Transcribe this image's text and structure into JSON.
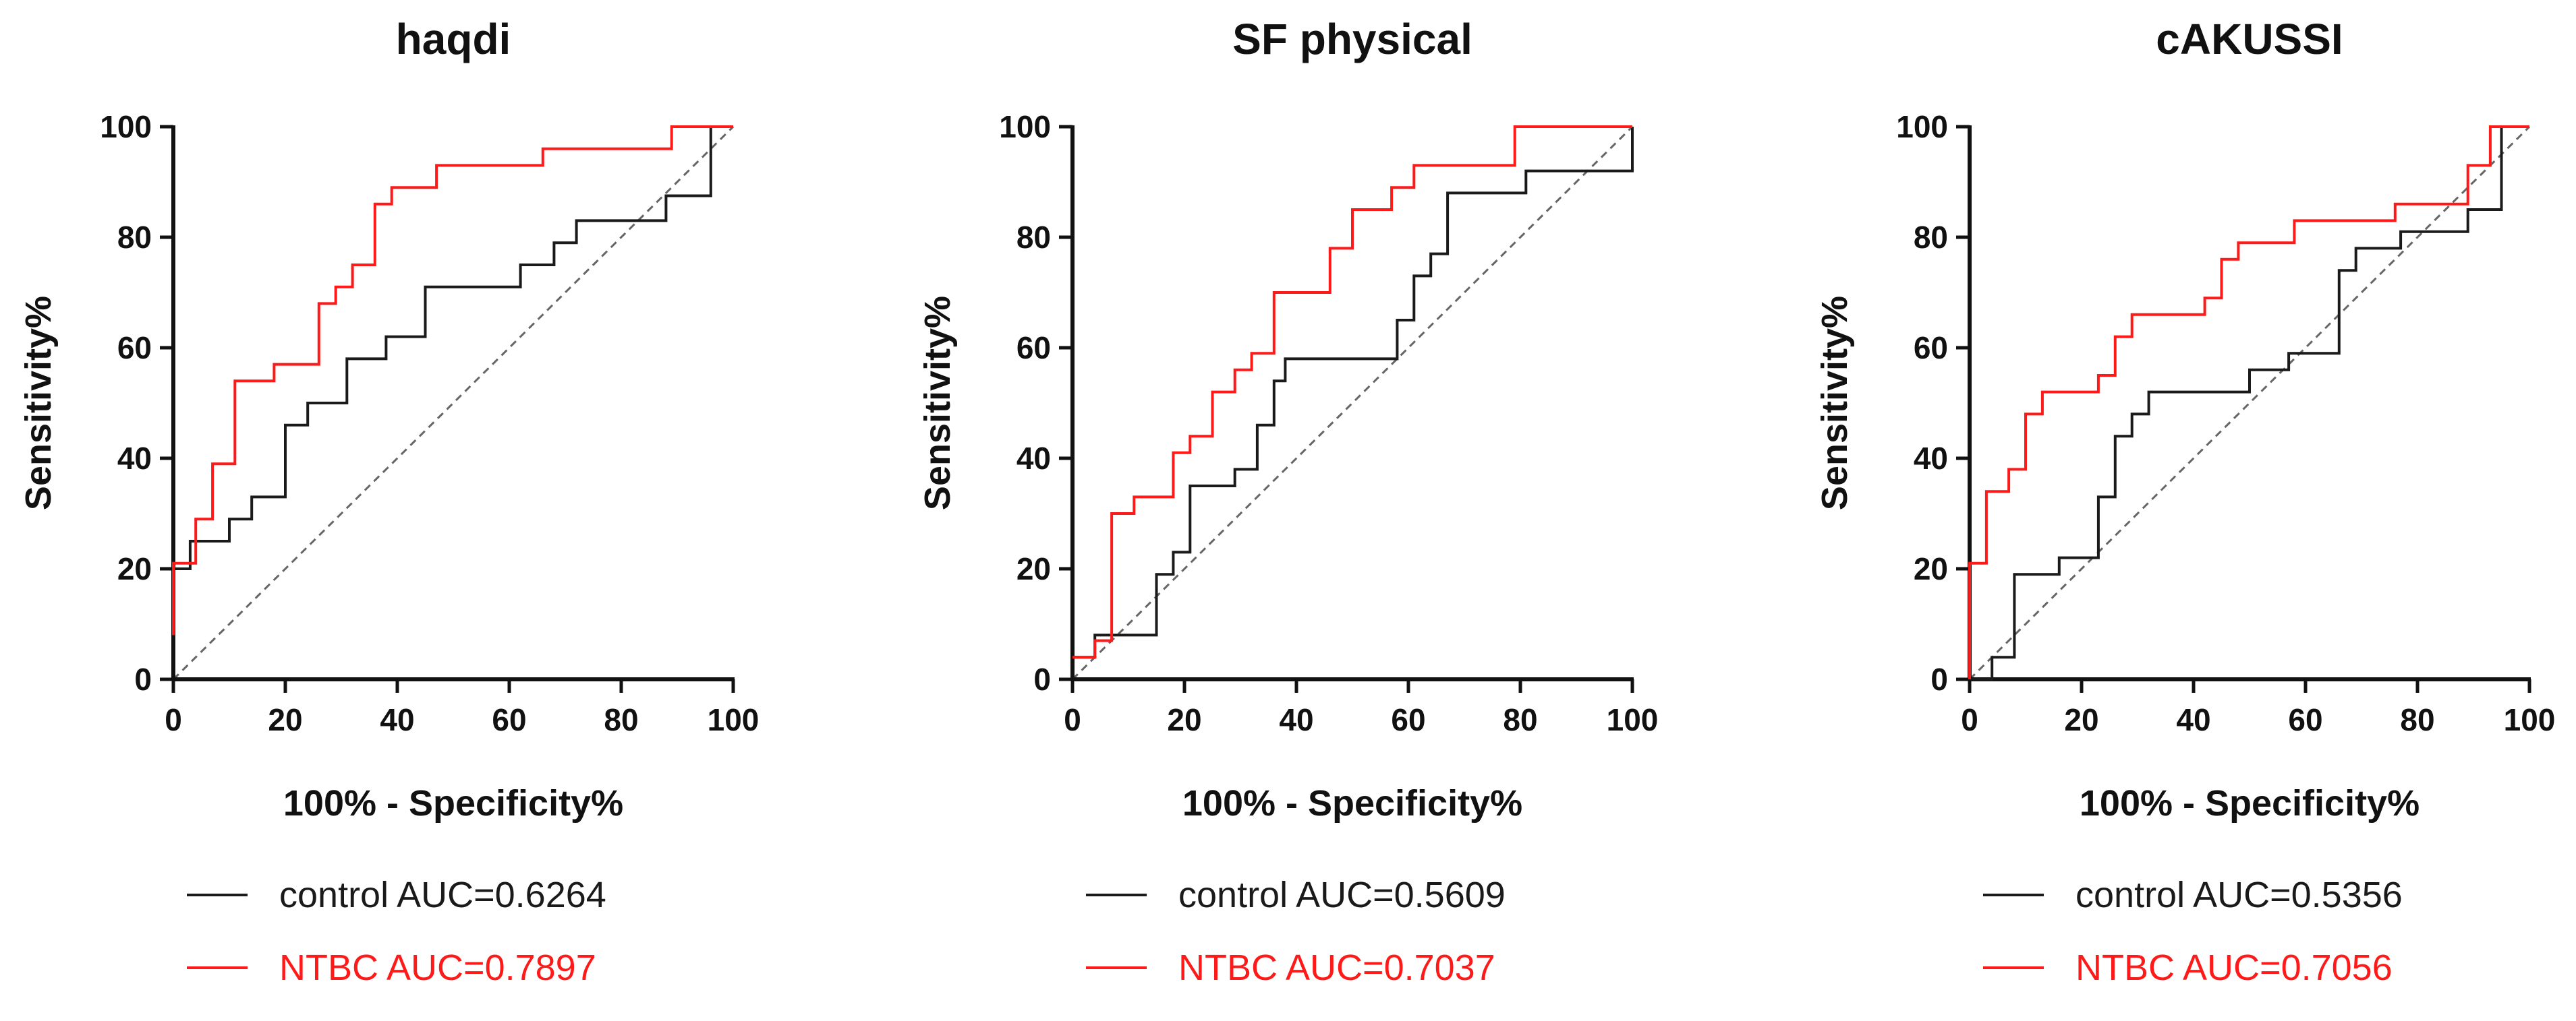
{
  "chart_data": [
    {
      "type": "line",
      "title": "haqdi",
      "xlabel": "100% - Specificity%",
      "ylabel": "Sensitivity%",
      "xlim": [
        0,
        100
      ],
      "ylim": [
        0,
        100
      ],
      "xticks": [
        "0",
        "20",
        "40",
        "60",
        "80",
        "100"
      ],
      "yticks": [
        "0",
        "20",
        "40",
        "60",
        "80",
        "100"
      ],
      "series": [
        {
          "name": "control AUC=0.6264",
          "color": "#1a1a1a",
          "x": [
            0,
            0,
            3,
            3,
            10,
            10,
            14,
            14,
            20,
            20,
            22,
            22,
            24,
            24,
            31,
            31,
            38,
            38,
            45,
            45,
            62,
            62,
            68,
            68,
            72,
            72,
            88,
            88,
            96,
            96,
            100
          ],
          "y": [
            8,
            20,
            20,
            25,
            25,
            29,
            29,
            33,
            33,
            46,
            46,
            46,
            46,
            50,
            50,
            58,
            58,
            62,
            62,
            71,
            71,
            75,
            75,
            79,
            79,
            83,
            83,
            87.5,
            87.5,
            100,
            100
          ]
        },
        {
          "name": "NTBC AUC=0.7897",
          "color": "#ff1a1a",
          "x": [
            0,
            0,
            4,
            4,
            7,
            7,
            11,
            11,
            18,
            18,
            26,
            26,
            29,
            29,
            32,
            32,
            36,
            36,
            39,
            39,
            47,
            47,
            66,
            66,
            89,
            89,
            100
          ],
          "y": [
            8,
            21,
            21,
            29,
            29,
            39,
            39,
            54,
            54,
            57,
            57,
            68,
            68,
            71,
            71,
            75,
            75,
            86,
            86,
            89,
            89,
            93,
            93,
            96,
            96,
            100,
            100
          ]
        }
      ]
    },
    {
      "type": "line",
      "title": "SF physical",
      "xlabel": "100% - Specificity%",
      "ylabel": "Sensitivity%",
      "xlim": [
        0,
        100
      ],
      "ylim": [
        0,
        100
      ],
      "xticks": [
        "0",
        "20",
        "40",
        "60",
        "80",
        "100"
      ],
      "yticks": [
        "0",
        "20",
        "40",
        "60",
        "80",
        "100"
      ],
      "series": [
        {
          "name": "control AUC=0.5609",
          "color": "#1a1a1a",
          "x": [
            0,
            4,
            4,
            15,
            15,
            18,
            18,
            21,
            21,
            29,
            29,
            33,
            33,
            36,
            36,
            38,
            38,
            58,
            58,
            61,
            61,
            64,
            64,
            67,
            67,
            81,
            81,
            94,
            94,
            100,
            100
          ],
          "y": [
            4,
            4,
            8,
            8,
            19,
            19,
            23,
            23,
            35,
            35,
            38,
            38,
            46,
            46,
            54,
            54,
            58,
            58,
            65,
            65,
            73,
            73,
            77,
            77,
            88,
            88,
            92,
            92,
            92,
            92,
            100
          ]
        },
        {
          "name": "NTBC AUC=0.7037",
          "color": "#ff1a1a",
          "x": [
            0,
            4,
            4,
            7,
            7,
            11,
            11,
            18,
            18,
            21,
            21,
            25,
            25,
            29,
            29,
            32,
            32,
            36,
            36,
            46,
            46,
            50,
            50,
            57,
            57,
            61,
            61,
            79,
            79,
            100
          ],
          "y": [
            4,
            4,
            7,
            7,
            30,
            30,
            33,
            33,
            41,
            41,
            44,
            44,
            52,
            52,
            56,
            56,
            59,
            59,
            70,
            70,
            78,
            78,
            85,
            85,
            89,
            89,
            93,
            93,
            100,
            100
          ]
        }
      ]
    },
    {
      "type": "line",
      "title": "cAKUSSI",
      "xlabel": "100% - Specificity%",
      "ylabel": "Sensitivity%",
      "xlim": [
        0,
        100
      ],
      "ylim": [
        0,
        100
      ],
      "xticks": [
        "0",
        "20",
        "40",
        "60",
        "80",
        "100"
      ],
      "yticks": [
        "0",
        "20",
        "40",
        "60",
        "80",
        "100"
      ],
      "series": [
        {
          "name": "control AUC=0.5356",
          "color": "#1a1a1a",
          "x": [
            0,
            4,
            4,
            8,
            8,
            16,
            16,
            23,
            23,
            26,
            26,
            29,
            29,
            32,
            32,
            35,
            35,
            50,
            50,
            57,
            57,
            66,
            66,
            69,
            69,
            77,
            77,
            89,
            89,
            95,
            95,
            100
          ],
          "y": [
            0,
            0,
            4,
            4,
            19,
            19,
            22,
            22,
            33,
            33,
            44,
            44,
            48,
            48,
            52,
            52,
            52,
            52,
            56,
            56,
            59,
            59,
            74,
            74,
            78,
            78,
            81,
            81,
            85,
            85,
            100,
            100
          ]
        },
        {
          "name": "NTBC AUC=0.7056",
          "color": "#ff1a1a",
          "x": [
            0,
            0,
            3,
            3,
            7,
            7,
            10,
            10,
            13,
            13,
            23,
            23,
            26,
            26,
            29,
            29,
            42,
            42,
            45,
            45,
            48,
            48,
            52,
            52,
            58,
            58,
            76,
            76,
            89,
            89,
            93,
            93,
            100
          ],
          "y": [
            0,
            21,
            21,
            34,
            34,
            38,
            38,
            48,
            48,
            52,
            52,
            55,
            55,
            62,
            62,
            66,
            66,
            69,
            69,
            76,
            76,
            79,
            79,
            79,
            79,
            83,
            83,
            86,
            86,
            93,
            93,
            100,
            100
          ]
        }
      ]
    }
  ]
}
